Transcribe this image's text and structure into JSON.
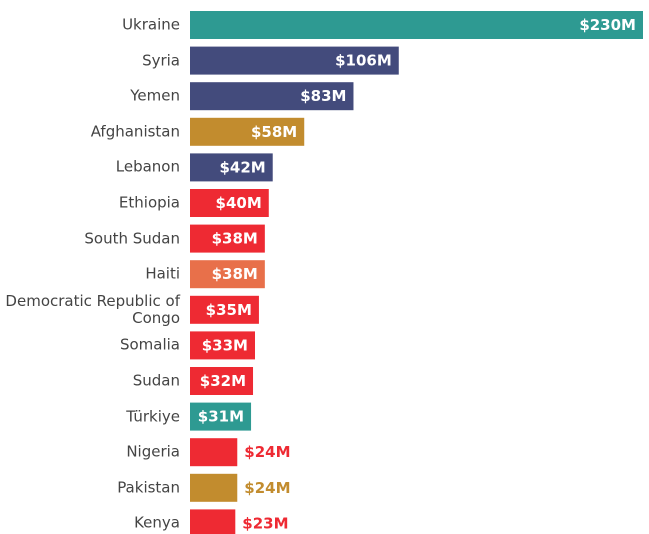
{
  "chart_data": {
    "type": "barh",
    "categories": [
      "Ukraine",
      "Syria",
      "Yemen",
      "Afghanistan",
      "Lebanon",
      "Ethiopia",
      "South Sudan",
      "Haiti",
      "Democratic Republic of Congo",
      "Somalia",
      "Sudan",
      "Türkiye",
      "Nigeria",
      "Pakistan",
      "Kenya"
    ],
    "values": [
      230,
      106,
      83,
      58,
      42,
      40,
      38,
      38,
      35,
      33,
      32,
      31,
      24,
      24,
      23
    ],
    "value_labels": [
      "$230M",
      "$106M",
      "$83M",
      "$58M",
      "$42M",
      "$40M",
      "$38M",
      "$38M",
      "$35M",
      "$33M",
      "$32M",
      "$31M",
      "$24M",
      "$24M",
      "$23M"
    ],
    "colors": [
      "#2e9a92",
      "#434b7c",
      "#434b7c",
      "#c28c2e",
      "#434b7c",
      "#ee2a33",
      "#ee2a33",
      "#e8704a",
      "#ee2a33",
      "#ee2a33",
      "#ee2a33",
      "#2e9a92",
      "#ee2a33",
      "#c28c2e",
      "#ee2a33"
    ]
  }
}
